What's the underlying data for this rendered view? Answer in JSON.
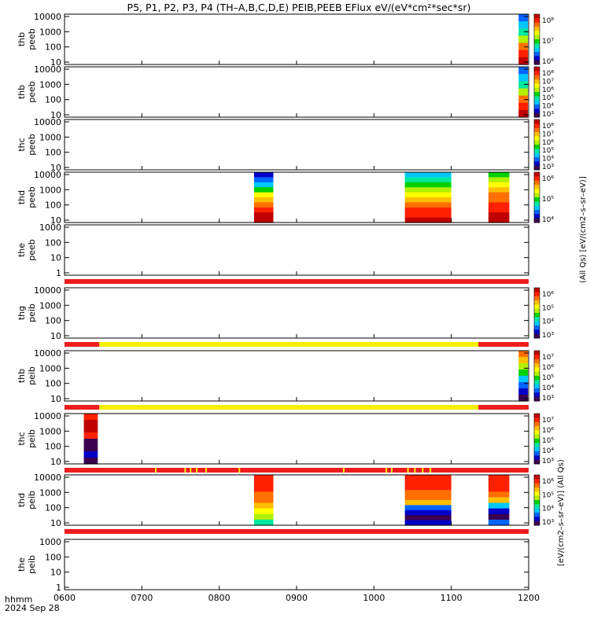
{
  "title": "P5, P1, P2, P3, P4 (TH–A,B,C,D,E) PEIB,PEEB EFlux eV/(eV*cm²*sec*sr)",
  "footer": {
    "hhmm_label": "hhmm",
    "date_label": "2024 Sep 28"
  },
  "xticks": [
    "0600",
    "0700",
    "0800",
    "0900",
    "1000",
    "1100",
    "1200"
  ],
  "xrange_hours": [
    6,
    12
  ],
  "colors": [
    "#3a0050",
    "#0000c8",
    "#0064ff",
    "#00c8ff",
    "#00e8a0",
    "#00d000",
    "#b0f000",
    "#ffff00",
    "#ffc000",
    "#ff7000",
    "#ff2000",
    "#c00000"
  ],
  "left_colorbar_label": "[eV/(cm2–s–sr–eV)] (All Qs)",
  "right_colorbar_label": "(All Qs) [eV/(cm2–s–sr–eV)]",
  "panels": [
    {
      "name": "thb-peeb",
      "label1": "thb",
      "label2": "peeb",
      "yticks": [
        "10000",
        "1000",
        "100",
        "10"
      ],
      "cbar": [
        "10⁸",
        "10⁷",
        "10⁶"
      ],
      "blocks": [
        {
          "start": 11.87,
          "end": 11.99,
          "profile": [
            2,
            3,
            4,
            6,
            9,
            10,
            11
          ]
        }
      ]
    },
    {
      "name": "thb2-peeb",
      "label1": "thb",
      "label2": "peeb",
      "yticks": [
        "10000",
        "1000",
        "100",
        "10"
      ],
      "cbar": [
        "10⁸",
        "10⁷",
        "10⁶",
        "10⁵",
        "10⁴",
        "10³"
      ],
      "blocks": [
        {
          "start": 11.87,
          "end": 11.99,
          "profile": [
            2,
            3,
            4,
            6,
            9,
            10,
            11
          ]
        }
      ]
    },
    {
      "name": "thc-peeb",
      "label1": "thc",
      "label2": "peeb",
      "yticks": [
        "10000",
        "1000",
        "100",
        "10"
      ],
      "cbar": [
        "10⁸",
        "10⁷",
        "10⁶",
        "10⁵",
        "10⁴",
        "10³"
      ],
      "blocks": []
    },
    {
      "name": "thd-peeb",
      "label1": "thd",
      "label2": "peeb",
      "yticks": [
        "10000",
        "1000",
        "100",
        "10"
      ],
      "cbar": [
        "10⁶",
        "10⁵",
        "10⁴"
      ],
      "blocks": [
        {
          "start": 8.45,
          "end": 8.7,
          "profile": [
            1,
            2,
            3,
            5,
            7,
            8,
            9,
            10,
            11,
            11
          ]
        },
        {
          "start": 10.4,
          "end": 11.0,
          "profile": [
            3,
            4,
            5,
            6,
            7,
            8,
            9,
            10,
            10,
            11
          ]
        },
        {
          "start": 11.48,
          "end": 11.75,
          "profile": [
            5,
            6,
            7,
            8,
            9,
            9,
            10,
            10,
            11,
            11
          ]
        }
      ]
    },
    {
      "name": "the-peeb",
      "label1": "the",
      "label2": "peeb",
      "yticks": [
        "1000",
        "100",
        "10",
        "1"
      ],
      "cbar": [],
      "blocks": []
    },
    {
      "name": "thg-peib",
      "label1": "thg",
      "label2": "peib",
      "yticks": [
        "10000",
        "1000",
        "100",
        "10"
      ],
      "cbar": [
        "10⁶",
        "10⁵",
        "10⁴",
        "10³"
      ],
      "blocks": []
    },
    {
      "name": "thb-peib",
      "label1": "thb",
      "label2": "peib",
      "yticks": [
        "10000",
        "1000",
        "100",
        "10"
      ],
      "cbar": [
        "10⁷",
        "10⁶",
        "10⁵",
        "10⁴",
        "10³"
      ],
      "blocks": [
        {
          "start": 11.87,
          "end": 11.99,
          "profile": [
            9,
            8,
            6,
            5,
            3,
            2,
            1,
            0
          ]
        }
      ]
    },
    {
      "name": "thc-peib",
      "label1": "thc",
      "label2": "peib",
      "yticks": [
        "10000",
        "1000",
        "100",
        "10"
      ],
      "cbar": [
        "10⁷",
        "10⁶",
        "10⁵",
        "10⁴",
        "10³"
      ],
      "blocks": [
        {
          "start": 6.25,
          "end": 6.43,
          "profile": [
            10,
            11,
            11,
            10,
            0,
            0,
            1,
            0
          ]
        }
      ]
    },
    {
      "name": "thd-peib",
      "label1": "thd",
      "label2": "peib",
      "yticks": [
        "10000",
        "1000",
        "100",
        "10"
      ],
      "cbar": [
        "10⁶",
        "10⁵",
        "10⁴",
        "10³"
      ],
      "blocks": [
        {
          "start": 8.45,
          "end": 8.7,
          "profile": [
            10,
            10,
            10,
            9,
            9,
            8,
            7,
            6,
            4
          ]
        },
        {
          "start": 10.4,
          "end": 11.0,
          "profile": [
            10,
            10,
            10,
            9,
            9,
            8,
            2,
            1,
            0,
            1
          ]
        },
        {
          "start": 11.48,
          "end": 11.75,
          "profile": [
            10,
            10,
            10,
            9,
            8,
            3,
            1,
            0,
            2
          ]
        }
      ]
    },
    {
      "name": "the-peib",
      "label1": "the",
      "label2": "peib",
      "yticks": [
        "1000",
        "100",
        "10",
        "1"
      ],
      "cbar": [],
      "blocks": []
    }
  ],
  "flag_bars": [
    {
      "after": 4,
      "segments": [
        {
          "start": 6.0,
          "end": 12.0,
          "color": "red"
        }
      ]
    },
    {
      "after": 5,
      "segments": [
        {
          "start": 6.0,
          "end": 6.45,
          "color": "red"
        },
        {
          "start": 6.45,
          "end": 11.35,
          "color": "yellow"
        },
        {
          "start": 11.35,
          "end": 12.0,
          "color": "red"
        }
      ]
    },
    {
      "after": 6,
      "segments": [
        {
          "start": 6.0,
          "end": 6.45,
          "color": "red"
        },
        {
          "start": 6.45,
          "end": 11.35,
          "color": "yellow"
        },
        {
          "start": 11.35,
          "end": 12.0,
          "color": "red"
        }
      ]
    },
    {
      "after": 7,
      "segments": [
        {
          "start": 6.0,
          "end": 12.0,
          "color": "red"
        },
        {
          "start": 7.17,
          "end": 7.19,
          "color": "yellow"
        },
        {
          "start": 7.55,
          "end": 7.57,
          "color": "yellow"
        },
        {
          "start": 7.62,
          "end": 7.64,
          "color": "yellow"
        },
        {
          "start": 7.7,
          "end": 7.72,
          "color": "yellow"
        },
        {
          "start": 7.82,
          "end": 7.84,
          "color": "yellow"
        },
        {
          "start": 8.25,
          "end": 8.27,
          "color": "yellow"
        },
        {
          "start": 9.6,
          "end": 9.62,
          "color": "yellow"
        },
        {
          "start": 10.15,
          "end": 10.17,
          "color": "yellow"
        },
        {
          "start": 10.22,
          "end": 10.24,
          "color": "yellow"
        },
        {
          "start": 10.43,
          "end": 10.45,
          "color": "yellow"
        },
        {
          "start": 10.52,
          "end": 10.54,
          "color": "yellow"
        },
        {
          "start": 10.62,
          "end": 10.64,
          "color": "yellow"
        },
        {
          "start": 10.72,
          "end": 10.74,
          "color": "yellow"
        }
      ]
    },
    {
      "after": 8,
      "segments": [
        {
          "start": 6.0,
          "end": 12.0,
          "color": "red"
        }
      ]
    }
  ],
  "chart_data": {
    "type": "heatmap",
    "title": "P5, P1, P2, P3, P4 (TH–A,B,C,D,E) PEIB,PEEB EFlux eV/(eV*cm²*sec*sr)",
    "x_label": "hhmm",
    "x_ticks": [
      "0600",
      "0700",
      "0800",
      "0900",
      "1000",
      "1100",
      "1200"
    ],
    "y_scale": "log",
    "y_unit": "eV",
    "panels": [
      "thb peeb",
      "thb peeb",
      "thc peeb",
      "thd peeb",
      "the peeb",
      "thg peib",
      "thb peib",
      "thc peib",
      "thd peib",
      "the peib"
    ],
    "data_intervals_hhmm": {
      "thb peeb": [
        [
          "1152",
          "1159"
        ]
      ],
      "thd peeb": [
        [
          "0827",
          "0842"
        ],
        [
          "1024",
          "1100"
        ],
        [
          "1129",
          "1145"
        ]
      ],
      "thb peib": [
        [
          "1152",
          "1159"
        ]
      ],
      "thc peib": [
        [
          "0615",
          "0626"
        ]
      ],
      "thd peib": [
        [
          "0827",
          "0842"
        ],
        [
          "1024",
          "1100"
        ],
        [
          "1129",
          "1145"
        ]
      ]
    }
  }
}
